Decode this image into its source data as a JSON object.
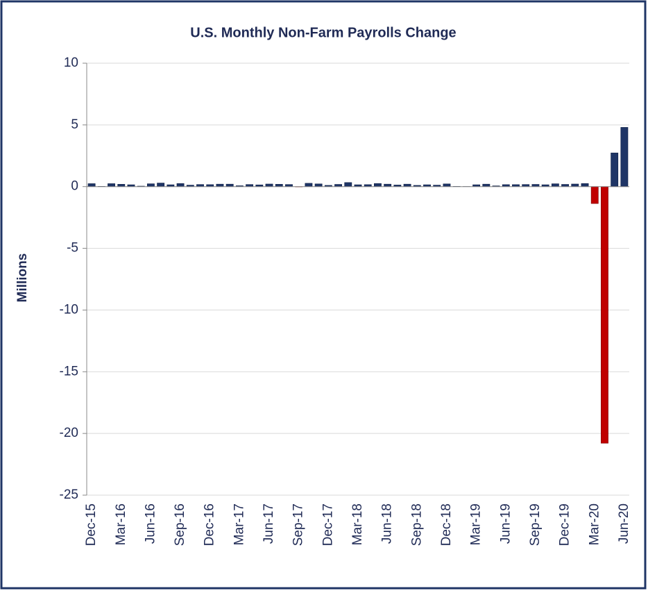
{
  "chart_data": {
    "type": "bar",
    "title": "U.S. Monthly Non-Farm Payrolls Change",
    "ylabel": "Millions",
    "categories": [
      "Dec-15",
      null,
      null,
      "Mar-16",
      null,
      null,
      "Jun-16",
      null,
      null,
      "Sep-16",
      null,
      null,
      "Dec-16",
      null,
      null,
      "Mar-17",
      null,
      null,
      "Jun-17",
      null,
      null,
      "Sep-17",
      null,
      null,
      "Dec-17",
      null,
      null,
      "Mar-18",
      null,
      null,
      "Jun-18",
      null,
      null,
      "Sep-18",
      null,
      null,
      "Dec-18",
      null,
      null,
      "Mar-19",
      null,
      null,
      "Jun-19",
      null,
      null,
      "Sep-19",
      null,
      null,
      "Dec-19",
      null,
      null,
      "Mar-20",
      null,
      null,
      "Jun-20"
    ],
    "values": [
      0.24,
      0.02,
      0.24,
      0.19,
      0.15,
      0.04,
      0.23,
      0.29,
      0.15,
      0.25,
      0.12,
      0.17,
      0.16,
      0.2,
      0.2,
      0.07,
      0.17,
      0.14,
      0.21,
      0.19,
      0.17,
      -0.02,
      0.27,
      0.22,
      0.1,
      0.18,
      0.33,
      0.15,
      0.16,
      0.25,
      0.2,
      0.13,
      0.2,
      0.1,
      0.15,
      0.12,
      0.22,
      0.02,
      0.01,
      0.15,
      0.2,
      0.06,
      0.16,
      0.16,
      0.17,
      0.18,
      0.15,
      0.23,
      0.18,
      0.21,
      0.25,
      -1.37,
      -20.79,
      2.73,
      4.8
    ],
    "color": "#1f3566",
    "negative_color": "#c00000",
    "ylim": [
      -25,
      10
    ],
    "yticks": [
      10,
      5,
      0,
      -5,
      -10,
      -15,
      -20,
      -25
    ],
    "grid": true
  }
}
